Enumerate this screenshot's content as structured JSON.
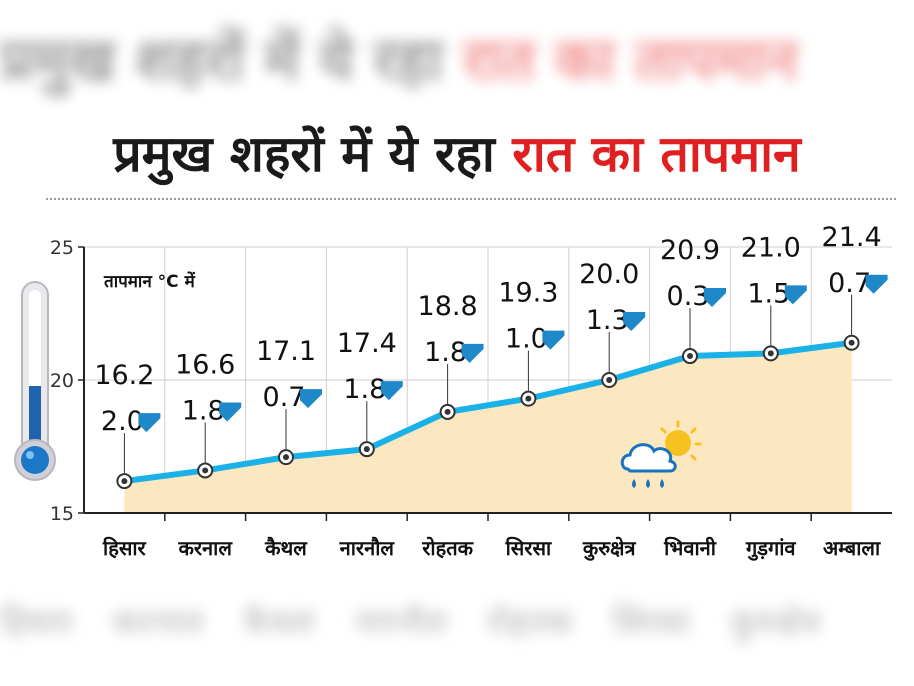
{
  "headline": {
    "part1": "प्रमुख शहरों में ये रहा",
    "part2": "रात का तापमान"
  },
  "colors": {
    "line": "#1ab0e8",
    "area": "#fbe7c0",
    "arrow": "#1f88c9",
    "headline_red": "#e02020"
  },
  "icons": [
    "thermometer-icon",
    "rain-sun-cloud-icon",
    "down-arrow-icon"
  ],
  "chart_data": {
    "type": "line",
    "title": "प्रमुख शहरों में ये रहा रात का तापमान",
    "ylabel": "तापमान °C में",
    "xlabel": "",
    "ylim": [
      15,
      25
    ],
    "yticks": [
      15,
      20,
      25
    ],
    "grid": true,
    "categories": [
      "हिसार",
      "करनाल",
      "कैथल",
      "नारनौल",
      "रोहतक",
      "सिरसा",
      "कुरुक्षेत्र",
      "भिवानी",
      "गुड़गांव",
      "अम्बाला"
    ],
    "series": [
      {
        "values": [
          16.2,
          16.6,
          17.1,
          17.4,
          18.8,
          19.3,
          20.0,
          20.9,
          21.0,
          21.4
        ],
        "value_labels": [
          "16.2",
          "16.6",
          "17.1",
          "17.4",
          "18.8",
          "19.3",
          "20.0",
          "20.9",
          "21.0",
          "21.4"
        ]
      }
    ],
    "change": {
      "values": [
        2.0,
        1.8,
        0.7,
        1.8,
        1.8,
        1.0,
        1.3,
        0.3,
        1.5,
        0.7
      ],
      "labels": [
        "2.0",
        "1.8",
        "0.7",
        "1.8",
        "1.8",
        "1.0",
        "1.3",
        "0.3",
        "1.5",
        "0.7"
      ],
      "direction": "down"
    }
  }
}
